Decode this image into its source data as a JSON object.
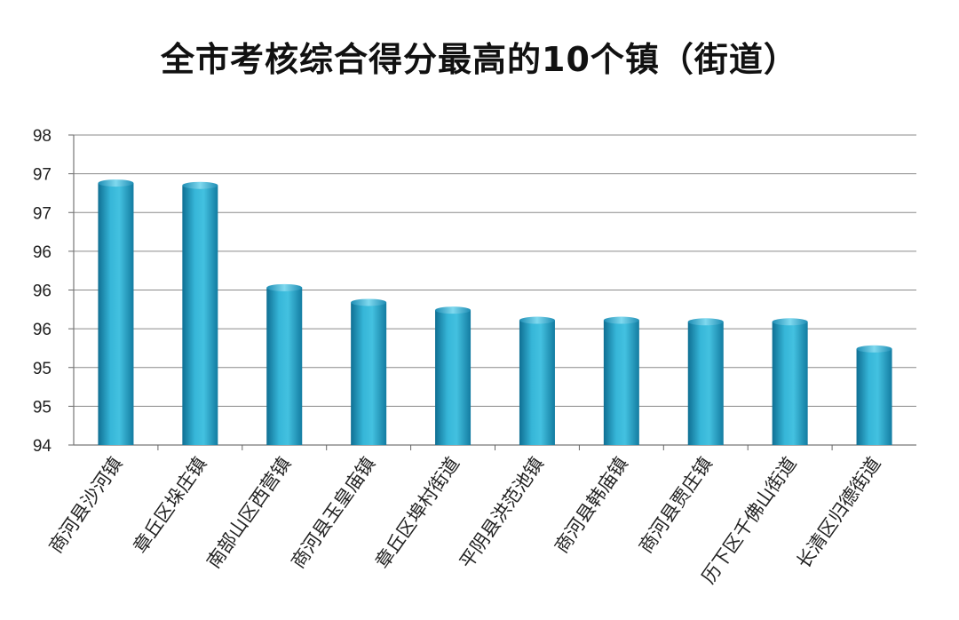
{
  "chart_data": {
    "type": "bar",
    "title": "全市考核综合得分最高的10个镇（街道）",
    "xlabel": "",
    "ylabel": "",
    "ylim": [
      94,
      98
    ],
    "y_tick_values": [
      94,
      94.5,
      95,
      95.5,
      96,
      96.5,
      97,
      97.5,
      98
    ],
    "y_tick_labels": [
      "94",
      "95",
      "95",
      "96",
      "96",
      "96",
      "97",
      "97",
      "98"
    ],
    "categories": [
      "商河县沙河镇",
      "章丘区垛庄镇",
      "南部山区西营镇",
      "商河县玉皇庙镇",
      "章丘区埠村街道",
      "平阴县洪范池镇",
      "商河县韩庙镇",
      "商河县贾庄镇",
      "历下区千佛山街道",
      "长清区归德街道"
    ],
    "values": [
      97.38,
      97.35,
      96.03,
      95.84,
      95.74,
      95.61,
      95.61,
      95.59,
      95.59,
      95.24
    ],
    "grid": true,
    "bar_color": "#2aa3c7"
  }
}
